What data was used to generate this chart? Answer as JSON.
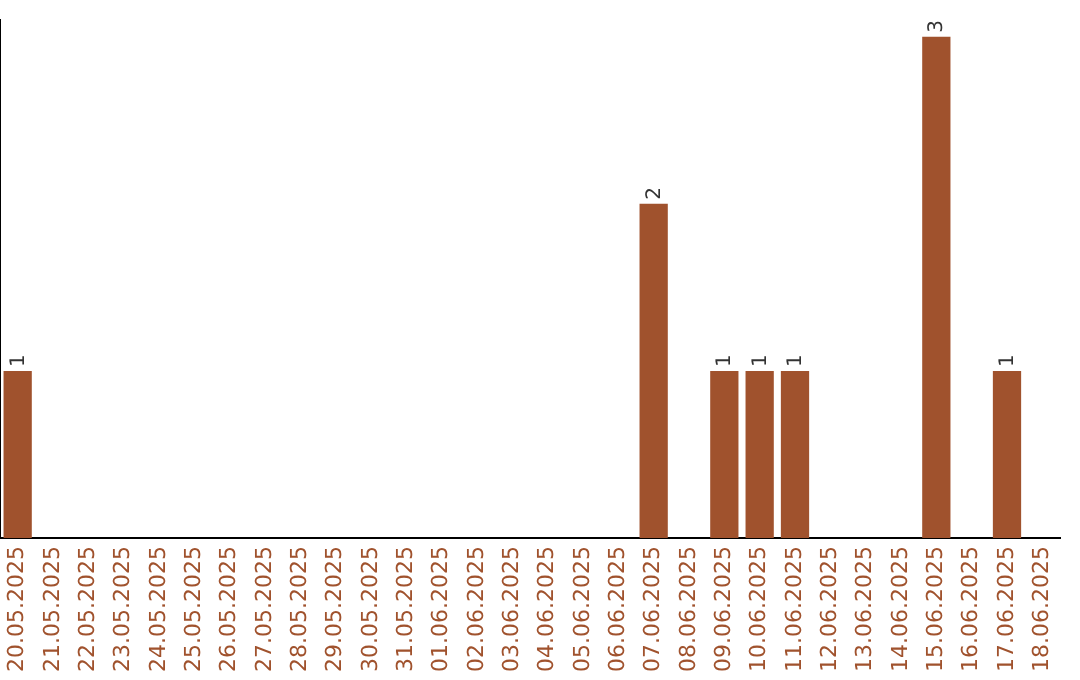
{
  "chart_data": {
    "type": "bar",
    "categories": [
      "20.05.2025",
      "21.05.2025",
      "22.05.2025",
      "23.05.2025",
      "24.05.2025",
      "25.05.2025",
      "26.05.2025",
      "27.05.2025",
      "28.05.2025",
      "29.05.2025",
      "30.05.2025",
      "31.05.2025",
      "01.06.2025",
      "02.06.2025",
      "03.06.2025",
      "04.06.2025",
      "05.06.2025",
      "06.06.2025",
      "07.06.2025",
      "08.06.2025",
      "09.06.2025",
      "10.06.2025",
      "11.06.2025",
      "12.06.2025",
      "13.06.2025",
      "14.06.2025",
      "15.06.2025",
      "16.06.2025",
      "17.06.2025",
      "18.06.2025"
    ],
    "values": [
      1,
      0,
      0,
      0,
      0,
      0,
      0,
      0,
      0,
      0,
      0,
      0,
      0,
      0,
      0,
      0,
      0,
      0,
      2,
      0,
      1,
      1,
      1,
      0,
      0,
      0,
      3,
      0,
      1,
      0
    ],
    "value_labels": [
      "1",
      null,
      null,
      null,
      null,
      null,
      null,
      null,
      null,
      null,
      null,
      null,
      null,
      null,
      null,
      null,
      null,
      null,
      "2",
      null,
      "1",
      "1",
      "1",
      null,
      null,
      null,
      "3",
      null,
      "1",
      null
    ],
    "color": "#a0522d",
    "ylim": [
      0,
      3.1
    ],
    "tick_labels": "x",
    "grid": false,
    "legend": false
  }
}
